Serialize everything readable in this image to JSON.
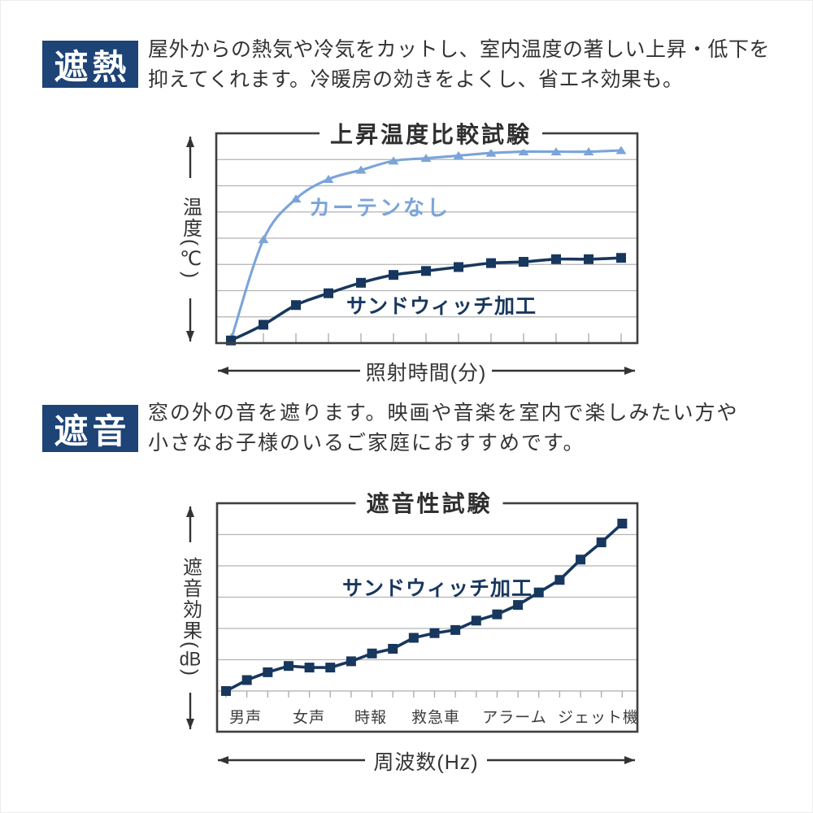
{
  "sections": [
    {
      "badge": "遮熱",
      "description_lines": [
        "屋外からの熱気や冷気をカットし、室内温度の著しい上昇・低下を",
        "抑えてくれます。冷暖房の効きをよくし、省エネ効果も。"
      ]
    },
    {
      "badge": "遮音",
      "description_lines": [
        "窓の外の音を遮ります。映画や音楽を室内で楽しみたい方や",
        "小さなお子様のいるご家庭におすすめです。"
      ]
    }
  ],
  "colors": {
    "badge_bg": "#1d4377",
    "navy": "#17375e",
    "light_blue": "#7aa4da",
    "grid": "#b3b3b3",
    "frame": "#3f3f3f",
    "tick": "#a9a9a9",
    "axis": "#333333",
    "text": "#333333"
  },
  "chart_data": [
    {
      "type": "line",
      "title": "上昇温度比較試験",
      "ylabel": "温度(℃)",
      "xlabel": "照射時間(分)",
      "ylim": [
        0,
        8
      ],
      "grid_values": [
        1,
        2,
        3,
        4,
        5,
        6,
        7
      ],
      "grid_on": true,
      "legend_position": "inline-annotations",
      "x_axis_note": "13 unlabeled time steps, tick marks only",
      "series": [
        {
          "name": "カーテンなし",
          "marker": "triangle",
          "color": "#7aa4da",
          "values": [
            0.1,
            3.95,
            5.5,
            6.25,
            6.6,
            6.95,
            7.05,
            7.15,
            7.25,
            7.3,
            7.3,
            7.3,
            7.35
          ]
        },
        {
          "name": "サンドウィッチ加工",
          "marker": "square",
          "color": "#17375e",
          "values": [
            0.1,
            0.7,
            1.45,
            1.9,
            2.3,
            2.6,
            2.75,
            2.9,
            3.05,
            3.1,
            3.2,
            3.2,
            3.25
          ]
        }
      ]
    },
    {
      "type": "line",
      "title": "遮音性試験",
      "ylabel": "遮音効果(dB)",
      "xlabel": "周波数(Hz)",
      "ylim": [
        -1.3,
        6
      ],
      "grid_values": [
        0,
        1,
        2,
        3,
        4,
        5
      ],
      "grid_on": true,
      "legend_position": "inline-annotations",
      "categories": [
        "男声",
        "女声",
        "時報",
        "救急車",
        "アラーム",
        "ジェット機"
      ],
      "series": [
        {
          "name": "サンドウィッチ加工",
          "marker": "square",
          "color": "#17375e",
          "values": [
            0,
            0.35,
            0.6,
            0.8,
            0.75,
            0.75,
            0.95,
            1.2,
            1.35,
            1.7,
            1.85,
            1.95,
            2.25,
            2.45,
            2.75,
            3.15,
            3.55,
            4.2,
            4.75,
            5.35
          ]
        }
      ]
    }
  ]
}
